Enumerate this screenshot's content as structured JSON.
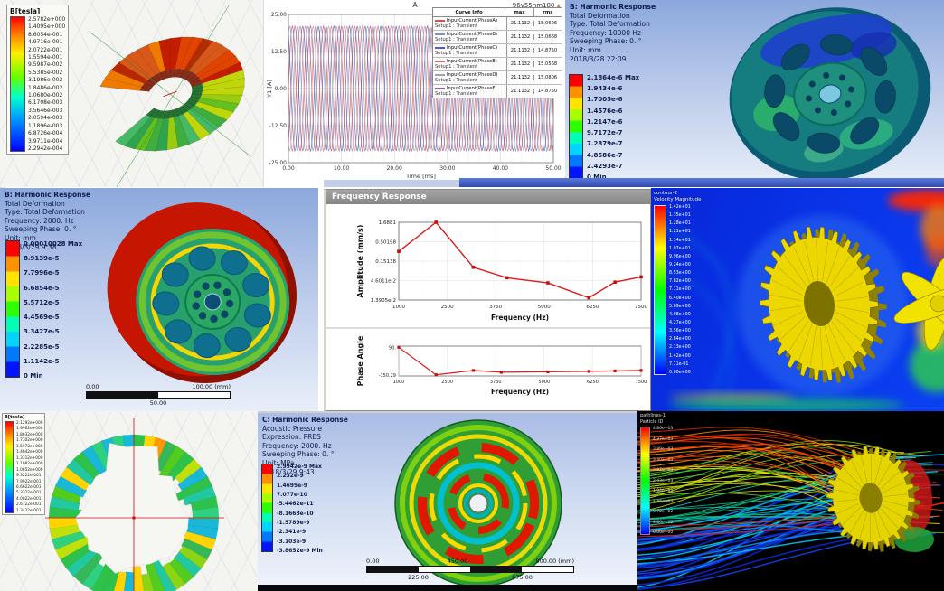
{
  "panels": {
    "maxwell_top": {
      "legend_title": "B[tesla]",
      "legend_values": [
        "2.5782e+000",
        "1.4095e+000",
        "8.6054e-001",
        "4.9716e-001",
        "2.0722e-001",
        "1.5594e-001",
        "9.5987e-002",
        "5.5385e-002",
        "3.1986e-002",
        "1.8486e-002",
        "1.0680e-002",
        "6.1708e-003",
        "3.5646e-003",
        "2.0594e-003",
        "1.1896e-003",
        "6.8726e-004",
        "3.9711e-004",
        "2.2942e-004"
      ]
    },
    "transient": {
      "title": "A",
      "corner_label": "96v55nm180",
      "ylabel": "Y1 [A]",
      "xlabel": "Time [ms]",
      "yticks": [
        "25.00",
        "12.50",
        "0.00",
        "-12.50",
        "-25.00"
      ],
      "xticks": [
        "0.00",
        "10.00",
        "20.00",
        "30.00",
        "40.00",
        "50.00"
      ],
      "table_headers": [
        "Curve Info",
        "max",
        "rms"
      ],
      "rows": [
        {
          "name": "InputCurrent(PhaseA)",
          "sub": "Setup1 : Transient",
          "max": "21.1132",
          "rms": "15.0606",
          "color": "#d05050"
        },
        {
          "name": "InputCurrent(PhaseB)",
          "sub": "Setup1 : Transient",
          "max": "21.1132",
          "rms": "15.0668",
          "color": "#8090c0"
        },
        {
          "name": "InputCurrent(PhaseC)",
          "sub": "Setup1 : Transient",
          "max": "21.1132",
          "rms": "14.8750",
          "color": "#5060b0"
        },
        {
          "name": "InputCurrent(PhaseE)",
          "sub": "Setup1 : Transient",
          "max": "21.1132",
          "rms": "15.0568",
          "color": "#e07070"
        },
        {
          "name": "InputCurrent(PhaseD)",
          "sub": "Setup1 : Transient",
          "max": "21.1132",
          "rms": "15.0806",
          "color": "#a0a0b8"
        },
        {
          "name": "InputCurrent(PhaseF)",
          "sub": "Setup1 : Transient",
          "max": "21.1132",
          "rms": "14.8750",
          "color": "#9060a0"
        }
      ]
    },
    "harmonic_top": {
      "header_lines": [
        "B: Harmonic Response",
        "Total Deformation",
        "Type: Total Deformation",
        "Frequency: 10000 Hz",
        "Sweeping Phase: 0. °",
        "Unit: mm",
        "2018/3/28 22:09"
      ],
      "legend": [
        "2.1864e-6 Max",
        "1.9434e-6",
        "1.7005e-6",
        "1.4576e-6",
        "1.2147e-6",
        "9.7172e-7",
        "7.2879e-7",
        "4.8586e-7",
        "2.4293e-7",
        "0 Min"
      ]
    },
    "harmonic_left": {
      "header_lines": [
        "B: Harmonic Response",
        "Total Deformation",
        "Type: Total Deformation",
        "Frequency: 2000. Hz",
        "Sweeping Phase: 0. °",
        "Unit: mm",
        "2018/3/29 9:38"
      ],
      "legend": [
        "0.00010028 Max",
        "8.9139e-5",
        "7.7996e-5",
        "6.6854e-5",
        "5.5712e-5",
        "4.4569e-5",
        "3.3427e-5",
        "2.2285e-5",
        "1.1142e-5",
        "0 Min"
      ],
      "scale_left": "0.00",
      "scale_right": "100.00 (mm)",
      "scale_mid": "50.00"
    },
    "freq_response": {
      "window_title": "Frequency Response",
      "amp_ylabel": "Amplitude (mm/s)",
      "amp_yticks": [
        "1.6881",
        "0.50198",
        "0.15138",
        "4.6011e-2",
        "1.3905e-2"
      ],
      "xticks": [
        "1000",
        "2500",
        "3750",
        "5000",
        "6250",
        "7500"
      ],
      "xlabel": "Frequency (Hz)",
      "phase_ylabel": "Phase Angle",
      "phase_yticks": [
        "90.",
        "-150.29"
      ]
    },
    "cfd": {
      "legend_title_lines": [
        "contour-2",
        "Velocity Magnitude"
      ],
      "legend_values": [
        "1.42e+01",
        "1.35e+01",
        "1.28e+01",
        "1.21e+01",
        "1.14e+01",
        "1.07e+01",
        "9.96e+00",
        "9.24e+00",
        "8.53e+00",
        "7.82e+00",
        "7.11e+00",
        "6.40e+00",
        "5.69e+00",
        "4.98e+00",
        "4.27e+00",
        "3.56e+00",
        "2.84e+00",
        "2.13e+00",
        "1.42e+00",
        "7.11e-01",
        "0.00e+00"
      ]
    },
    "maxwell_bottom": {
      "legend_title": "B[tesla]",
      "legend_values": [
        "2.1292e+000",
        "1.9962e+000",
        "1.8632e+000",
        "1.7302e+000",
        "1.5972e+000",
        "1.4642e+000",
        "1.3312e+000",
        "1.1982e+000",
        "1.0652e+000",
        "9.3222e-001",
        "7.9922e-001",
        "6.6622e-001",
        "5.3322e-001",
        "4.0022e-001",
        "2.6722e-001",
        "1.3422e-001"
      ]
    },
    "acoustic": {
      "header_lines": [
        "C: Harmonic Response",
        "Acoustic Pressure",
        "Expression: PRES",
        "Frequency: 2000. Hz",
        "Sweeping Phase: 0. °",
        "Unit: MPa",
        "2018/3/29 9:43"
      ],
      "legend": [
        "2.9942e-9 Max",
        "2.232e-9",
        "1.4699e-9",
        "7.077e-10",
        "-5.4462e-11",
        "-8.1668e-10",
        "-1.5789e-9",
        "-2.341e-9",
        "-3.103e-9",
        "-3.8652e-9 Min"
      ],
      "scale_left": "0.00",
      "scale_mid_top": "450.00",
      "scale_right": "900.00 (mm)",
      "scale_q1": "225.00",
      "scale_q3": "675.00"
    },
    "pathlines": {
      "legend_title_lines": [
        "pathlines-1",
        "Particle ID"
      ],
      "legend_values": [
        "4.86e+03",
        "4.37e+03",
        "3.89e+03",
        "3.40e+03",
        "2.92e+03",
        "2.43e+03",
        "1.94e+03",
        "1.46e+03",
        "9.72e+02",
        "4.86e+02",
        "0.00e+00"
      ]
    }
  },
  "chart_data": [
    {
      "type": "line",
      "title": "A",
      "xlabel": "Time [ms]",
      "ylabel": "Y1 [A]",
      "xlim": [
        0,
        50
      ],
      "ylim": [
        -25,
        25
      ],
      "waveform": {
        "amplitude": 21.1132,
        "cycles": 17,
        "phase_step_deg": 60
      },
      "series": [
        {
          "name": "InputCurrent(PhaseA)",
          "max": 21.1132,
          "rms": 15.0606
        },
        {
          "name": "InputCurrent(PhaseB)",
          "max": 21.1132,
          "rms": 15.0668
        },
        {
          "name": "InputCurrent(PhaseC)",
          "max": 21.1132,
          "rms": 14.875
        },
        {
          "name": "InputCurrent(PhaseE)",
          "max": 21.1132,
          "rms": 15.0568
        },
        {
          "name": "InputCurrent(PhaseD)",
          "max": 21.1132,
          "rms": 15.0806
        },
        {
          "name": "InputCurrent(PhaseF)",
          "max": 21.1132,
          "rms": 14.875
        }
      ]
    },
    {
      "type": "line",
      "title": "Frequency Response - Amplitude",
      "xlabel": "Frequency (Hz)",
      "ylabel": "Amplitude (mm/s)",
      "yscale": "log",
      "xlim": [
        1000,
        7500
      ],
      "yticks": [
        1.6881,
        0.50198,
        0.15138,
        0.046011,
        0.013905
      ],
      "x": [
        1000,
        2000,
        3000,
        3900,
        5000,
        6100,
        6800,
        7500
      ],
      "y": [
        0.28,
        1.69,
        0.105,
        0.055,
        0.04,
        0.016,
        0.042,
        0.058
      ]
    },
    {
      "type": "line",
      "title": "Frequency Response - Phase",
      "xlabel": "Frequency (Hz)",
      "ylabel": "Phase Angle",
      "ylim": [
        -160,
        100
      ],
      "x": [
        1000,
        2000,
        3000,
        3750,
        5000,
        6100,
        6800,
        7500
      ],
      "y": [
        90,
        -150,
        -112,
        -128,
        -124,
        -120,
        -116,
        -112
      ]
    }
  ]
}
